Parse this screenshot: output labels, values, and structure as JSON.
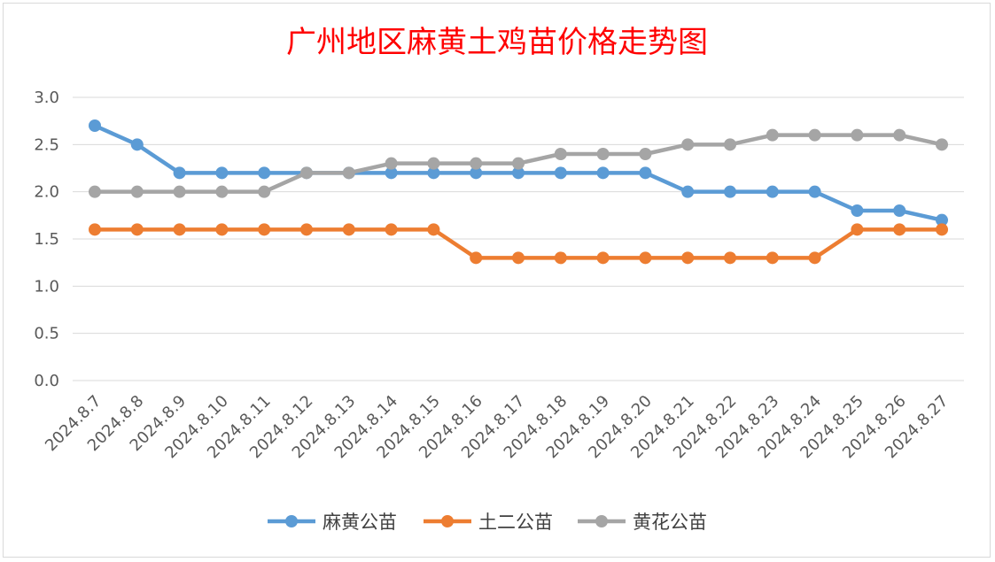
{
  "chart_data": {
    "type": "line",
    "title": "广州地区麻黄土鸡苗价格走势图",
    "categories": [
      "2024.8.7",
      "2024.8.8",
      "2024.8.9",
      "2024.8.10",
      "2024.8.11",
      "2024.8.12",
      "2024.8.13",
      "2024.8.14",
      "2024.8.15",
      "2024.8.16",
      "2024.8.17",
      "2024.8.18",
      "2024.8.19",
      "2024.8.20",
      "2024.8.21",
      "2024.8.22",
      "2024.8.23",
      "2024.8.24",
      "2024.8.25",
      "2024.8.26",
      "2024.8.27"
    ],
    "ylim": [
      0,
      3.0
    ],
    "yticks": [
      "0.0",
      "0.5",
      "1.0",
      "1.5",
      "2.0",
      "2.5",
      "3.0"
    ],
    "grid": true,
    "legend_position": "bottom",
    "series": [
      {
        "name": "麻黄公苗",
        "color": "#5b9bd5",
        "values": [
          2.7,
          2.5,
          2.2,
          2.2,
          2.2,
          2.2,
          2.2,
          2.2,
          2.2,
          2.2,
          2.2,
          2.2,
          2.2,
          2.2,
          2.0,
          2.0,
          2.0,
          2.0,
          1.8,
          1.8,
          1.7
        ]
      },
      {
        "name": "土二公苗",
        "color": "#ed7d31",
        "values": [
          1.6,
          1.6,
          1.6,
          1.6,
          1.6,
          1.6,
          1.6,
          1.6,
          1.6,
          1.3,
          1.3,
          1.3,
          1.3,
          1.3,
          1.3,
          1.3,
          1.3,
          1.3,
          1.6,
          1.6,
          1.6
        ]
      },
      {
        "name": "黄花公苗",
        "color": "#a5a5a5",
        "values": [
          2.0,
          2.0,
          2.0,
          2.0,
          2.0,
          2.2,
          2.2,
          2.3,
          2.3,
          2.3,
          2.3,
          2.4,
          2.4,
          2.4,
          2.5,
          2.5,
          2.6,
          2.6,
          2.6,
          2.6,
          2.5
        ]
      }
    ]
  }
}
